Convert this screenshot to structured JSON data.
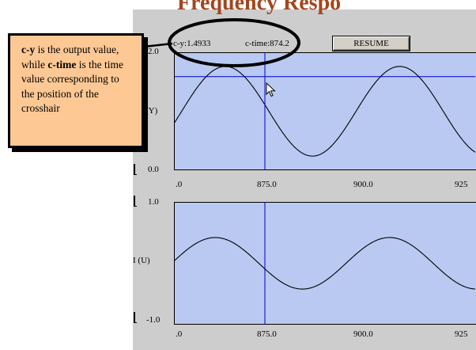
{
  "app": {
    "title": "Frequency Respo",
    "resume_label": "RESUME",
    "cy_readout": "c-y:1.4933",
    "ctime_readout": "c-time:874.2"
  },
  "top_plot": {
    "y_axis_title": "(Y)",
    "y_ticks": [
      "2.0",
      "0.0"
    ],
    "x_ticks": [
      ".0",
      "875.0",
      "900.0",
      "925"
    ],
    "crosshair_y": 1.4933
  },
  "bottom_plot": {
    "y_axis_title": "I (U)",
    "y_ticks": [
      "1.0",
      "-1.0"
    ],
    "x_ticks": [
      ".0",
      "875.0",
      "900.0",
      "925"
    ]
  },
  "crosshair_time": 874.2,
  "callout": {
    "term1": "c-y",
    "text1": " is the output value, while ",
    "term2": "c-time",
    "text2": " is the time value corresponding to the position of the crosshair"
  },
  "colors": {
    "plot_background": "#b9c9f1",
    "crosshair": "#0000cc",
    "callout_background": "#fdc894",
    "title": "#a3461e",
    "window_background": "#cdcdcd"
  },
  "icons": [
    "cursor-arrow-icon"
  ]
}
